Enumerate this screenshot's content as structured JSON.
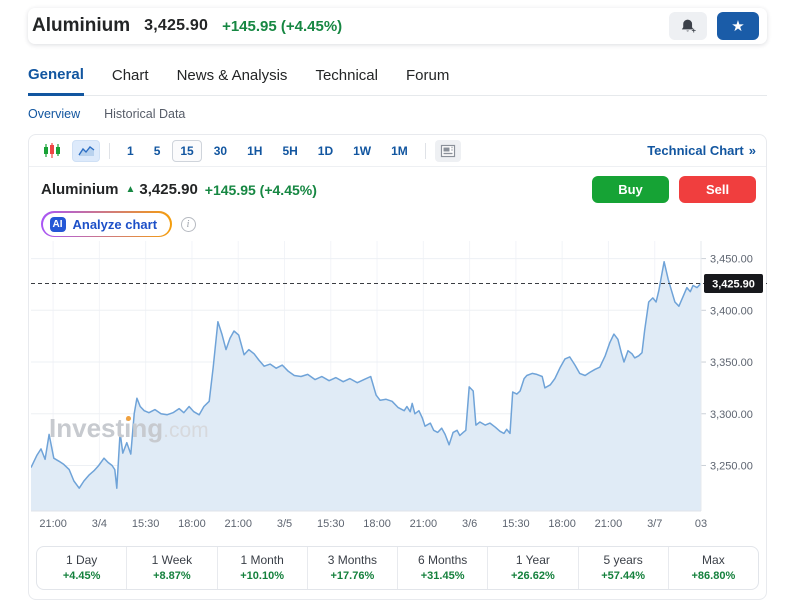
{
  "ticker": {
    "name": "Aluminium",
    "price": "3,425.90",
    "change": "+145.95 (+4.45%)"
  },
  "actions": {
    "alert_icon": "bell-plus-icon",
    "watch_icon": "star-icon"
  },
  "tabs": {
    "items": [
      "General",
      "Chart",
      "News & Analysis",
      "Technical",
      "Forum"
    ],
    "active": "General"
  },
  "subnav": {
    "items": [
      "Overview",
      "Historical Data"
    ],
    "active": "Overview"
  },
  "toolbar": {
    "chart_type_icons": [
      "candlestick-icon",
      "area-chart-icon"
    ],
    "active_type": "area",
    "intervals": [
      "1",
      "5",
      "15",
      "30",
      "1H",
      "5H",
      "1D",
      "1W",
      "1M"
    ],
    "active_interval": "15",
    "layout_icon": "layout-icon",
    "technical_chart_label": "Technical Chart",
    "technical_chart_arrow": "»"
  },
  "chart_header": {
    "name": "Aluminium",
    "direction": "▲",
    "price": "3,425.90",
    "change": "+145.95 (+4.45%)",
    "buy_label": "Buy",
    "sell_label": "Sell"
  },
  "analyze": {
    "badge": "AI",
    "label": "Analyze chart",
    "info_icon": "i"
  },
  "watermark": {
    "text": "Investing",
    "suffix": ".com"
  },
  "colors": {
    "link_blue": "#1256a0",
    "positive_green": "#168742",
    "buy_green": "#16a335",
    "sell_red": "#f03e3e",
    "star_button_blue": "#1a5ca8"
  },
  "chart_data": {
    "type": "area",
    "title": "Aluminium intraday price",
    "x_ticks": [
      "21:00",
      "3/4",
      "15:30",
      "18:00",
      "21:00",
      "3/5",
      "15:30",
      "18:00",
      "21:00",
      "3/6",
      "15:30",
      "18:00",
      "21:00",
      "3/7",
      "03"
    ],
    "y_ticks": [
      "3,450.00",
      "3,400.00",
      "3,350.00",
      "3,300.00",
      "3,250.00"
    ],
    "y_tick_values": [
      3450,
      3400,
      3350,
      3300,
      3250
    ],
    "ylim": [
      3206,
      3467
    ],
    "grid": true,
    "legend": "none",
    "last_price": 3425.9,
    "last_price_label": "3,425.90",
    "line_color": "#6fa3d8",
    "fill_color": "#e0ebf6",
    "dashed_color": "#3a3d42",
    "badge_bg": "#17181c",
    "badge_text_color": "#ffffff",
    "grid_color": "#edf0f4",
    "vgrid_color": "#f2f4f8",
    "axis_color": "#dfe3e9",
    "tick_text_color": "#5d6470",
    "points": [
      [
        0.0,
        3248
      ],
      [
        0.009,
        3260
      ],
      [
        0.015,
        3266
      ],
      [
        0.021,
        3256
      ],
      [
        0.027,
        3280
      ],
      [
        0.034,
        3257
      ],
      [
        0.042,
        3254
      ],
      [
        0.049,
        3251
      ],
      [
        0.057,
        3246
      ],
      [
        0.064,
        3235
      ],
      [
        0.072,
        3228
      ],
      [
        0.079,
        3235
      ],
      [
        0.087,
        3241
      ],
      [
        0.094,
        3245
      ],
      [
        0.101,
        3250
      ],
      [
        0.109,
        3257
      ],
      [
        0.115,
        3253
      ],
      [
        0.121,
        3250
      ],
      [
        0.125,
        3246
      ],
      [
        0.128,
        3228
      ],
      [
        0.133,
        3282
      ],
      [
        0.137,
        3262
      ],
      [
        0.143,
        3272
      ],
      [
        0.149,
        3261
      ],
      [
        0.154,
        3300
      ],
      [
        0.158,
        3315
      ],
      [
        0.163,
        3307
      ],
      [
        0.169,
        3303
      ],
      [
        0.176,
        3301
      ],
      [
        0.185,
        3304
      ],
      [
        0.194,
        3300
      ],
      [
        0.203,
        3299
      ],
      [
        0.212,
        3301
      ],
      [
        0.221,
        3305
      ],
      [
        0.228,
        3301
      ],
      [
        0.236,
        3307
      ],
      [
        0.243,
        3302
      ],
      [
        0.251,
        3299
      ],
      [
        0.258,
        3307
      ],
      [
        0.266,
        3312
      ],
      [
        0.272,
        3345
      ],
      [
        0.279,
        3389
      ],
      [
        0.285,
        3377
      ],
      [
        0.291,
        3362
      ],
      [
        0.297,
        3373
      ],
      [
        0.303,
        3380
      ],
      [
        0.31,
        3376
      ],
      [
        0.318,
        3357
      ],
      [
        0.325,
        3362
      ],
      [
        0.333,
        3358
      ],
      [
        0.34,
        3352
      ],
      [
        0.348,
        3346
      ],
      [
        0.357,
        3348
      ],
      [
        0.366,
        3344
      ],
      [
        0.375,
        3347
      ],
      [
        0.384,
        3341
      ],
      [
        0.393,
        3337
      ],
      [
        0.403,
        3336
      ],
      [
        0.413,
        3338
      ],
      [
        0.424,
        3333
      ],
      [
        0.434,
        3336
      ],
      [
        0.445,
        3332
      ],
      [
        0.455,
        3335
      ],
      [
        0.466,
        3331
      ],
      [
        0.476,
        3334
      ],
      [
        0.487,
        3330
      ],
      [
        0.497,
        3333
      ],
      [
        0.507,
        3336
      ],
      [
        0.515,
        3318
      ],
      [
        0.521,
        3313
      ],
      [
        0.53,
        3314
      ],
      [
        0.539,
        3312
      ],
      [
        0.548,
        3306
      ],
      [
        0.557,
        3303
      ],
      [
        0.561,
        3307
      ],
      [
        0.566,
        3302
      ],
      [
        0.569,
        3310
      ],
      [
        0.573,
        3300
      ],
      [
        0.579,
        3303
      ],
      [
        0.584,
        3296
      ],
      [
        0.588,
        3288
      ],
      [
        0.596,
        3291
      ],
      [
        0.601,
        3284
      ],
      [
        0.607,
        3282
      ],
      [
        0.613,
        3286
      ],
      [
        0.618,
        3280
      ],
      [
        0.624,
        3270
      ],
      [
        0.63,
        3282
      ],
      [
        0.636,
        3284
      ],
      [
        0.64,
        3279
      ],
      [
        0.645,
        3282
      ],
      [
        0.649,
        3284
      ],
      [
        0.654,
        3326
      ],
      [
        0.66,
        3322
      ],
      [
        0.664,
        3289
      ],
      [
        0.67,
        3292
      ],
      [
        0.678,
        3289
      ],
      [
        0.685,
        3291
      ],
      [
        0.693,
        3287
      ],
      [
        0.7,
        3283
      ],
      [
        0.706,
        3281
      ],
      [
        0.71,
        3285
      ],
      [
        0.715,
        3281
      ],
      [
        0.719,
        3321
      ],
      [
        0.725,
        3319
      ],
      [
        0.73,
        3322
      ],
      [
        0.736,
        3334
      ],
      [
        0.74,
        3337
      ],
      [
        0.748,
        3339
      ],
      [
        0.755,
        3338
      ],
      [
        0.763,
        3336
      ],
      [
        0.767,
        3325
      ],
      [
        0.775,
        3328
      ],
      [
        0.782,
        3334
      ],
      [
        0.79,
        3345
      ],
      [
        0.797,
        3353
      ],
      [
        0.804,
        3355
      ],
      [
        0.812,
        3347
      ],
      [
        0.819,
        3339
      ],
      [
        0.827,
        3337
      ],
      [
        0.834,
        3340
      ],
      [
        0.842,
        3343
      ],
      [
        0.849,
        3345
      ],
      [
        0.857,
        3356
      ],
      [
        0.864,
        3369
      ],
      [
        0.87,
        3377
      ],
      [
        0.876,
        3372
      ],
      [
        0.881,
        3359
      ],
      [
        0.885,
        3350
      ],
      [
        0.891,
        3361
      ],
      [
        0.897,
        3358
      ],
      [
        0.901,
        3354
      ],
      [
        0.907,
        3356
      ],
      [
        0.912,
        3359
      ],
      [
        0.916,
        3381
      ],
      [
        0.922,
        3408
      ],
      [
        0.928,
        3412
      ],
      [
        0.933,
        3408
      ],
      [
        0.937,
        3419
      ],
      [
        0.945,
        3447
      ],
      [
        0.951,
        3430
      ],
      [
        0.955,
        3421
      ],
      [
        0.961,
        3408
      ],
      [
        0.967,
        3404
      ],
      [
        0.973,
        3413
      ],
      [
        0.979,
        3422
      ],
      [
        0.984,
        3418
      ],
      [
        0.988,
        3424
      ],
      [
        0.994,
        3422
      ],
      [
        1.0,
        3426
      ]
    ]
  },
  "periods": [
    {
      "label": "1 Day",
      "change": "+4.45%"
    },
    {
      "label": "1 Week",
      "change": "+8.87%"
    },
    {
      "label": "1 Month",
      "change": "+10.10%"
    },
    {
      "label": "3 Months",
      "change": "+17.76%"
    },
    {
      "label": "6 Months",
      "change": "+31.45%"
    },
    {
      "label": "1 Year",
      "change": "+26.62%"
    },
    {
      "label": "5 years",
      "change": "+57.44%"
    },
    {
      "label": "Max",
      "change": "+86.80%"
    }
  ]
}
